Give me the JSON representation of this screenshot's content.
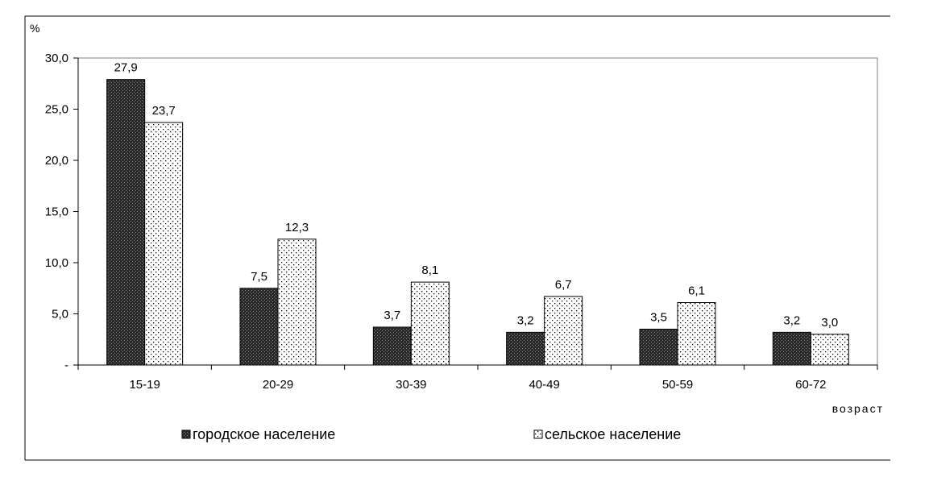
{
  "chart_data": {
    "type": "bar",
    "ylabel": "%",
    "xlabel": "возраст",
    "categories": [
      "15-19",
      "20-29",
      "30-39",
      "40-49",
      "50-59",
      "60-72"
    ],
    "series": [
      {
        "name": "городское население",
        "values": [
          27.9,
          7.5,
          3.7,
          3.2,
          3.5,
          3.2
        ],
        "labels": [
          "27,9",
          "7,5",
          "3,7",
          "3,2",
          "3,5",
          "3,2"
        ],
        "fill": "dark-crosshatch"
      },
      {
        "name": "сельское население",
        "values": [
          23.7,
          12.3,
          8.1,
          6.7,
          6.1,
          3.0
        ],
        "labels": [
          "23,7",
          "12,3",
          "8,1",
          "6,7",
          "6,1",
          "3,0"
        ],
        "fill": "dotted"
      }
    ],
    "ylim": [
      0,
      30
    ],
    "yticks": [
      "-",
      "5,0",
      "10,0",
      "15,0",
      "20,0",
      "25,0",
      "30,0"
    ],
    "grid": false,
    "legend_position": "bottom"
  }
}
